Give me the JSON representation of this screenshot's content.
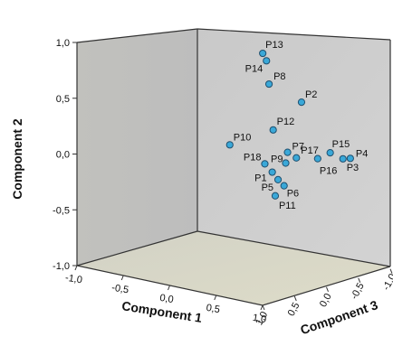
{
  "chart_data": {
    "type": "scatter",
    "projection": "3d",
    "xlabel": "Component 1",
    "ylabel": "Component 2",
    "zlabel": "Component 3",
    "xlim": [
      -1.0,
      1.0
    ],
    "ylim": [
      -1.0,
      1.0
    ],
    "zlim": [
      -1.0,
      1.0
    ],
    "xticks": [
      "-1,0",
      "-0,5",
      "0,0",
      "0,5",
      "1,0"
    ],
    "yticks": [
      "-1,0",
      "-0,5",
      "0,0",
      "0,5",
      "1,0"
    ],
    "zticks": [
      "1,0",
      "0,5",
      "0,0",
      "-0,5",
      "-1,0"
    ],
    "grid": false,
    "point_color": "#3aa8d8",
    "points": [
      {
        "label": "P1",
        "x": 0.52,
        "y": -0.03,
        "z": 0.1
      },
      {
        "label": "P2",
        "x": 0.9,
        "y": 0.68,
        "z": 0.2
      },
      {
        "label": "P3",
        "x": 0.86,
        "y": 0.05,
        "z": -0.55
      },
      {
        "label": "P4",
        "x": 0.92,
        "y": 0.06,
        "z": -0.58
      },
      {
        "label": "P5",
        "x": 0.55,
        "y": -0.1,
        "z": 0.05
      },
      {
        "label": "P6",
        "x": 0.55,
        "y": -0.17,
        "z": -0.05
      },
      {
        "label": "P7",
        "x": 0.62,
        "y": 0.15,
        "z": 0.0
      },
      {
        "label": "P8",
        "x": 0.55,
        "y": 0.78,
        "z": 0.2
      },
      {
        "label": "P9",
        "x": 0.6,
        "y": 0.05,
        "z": 0.0
      },
      {
        "label": "P10",
        "x": 0.03,
        "y": 0.12,
        "z": 0.05
      },
      {
        "label": "P11",
        "x": 0.52,
        "y": -0.25,
        "z": 0.05
      },
      {
        "label": "P12",
        "x": 0.53,
        "y": 0.35,
        "z": 0.1
      },
      {
        "label": "P13",
        "x": 0.45,
        "y": 1.03,
        "z": 0.15
      },
      {
        "label": "P14",
        "x": 0.49,
        "y": 0.97,
        "z": 0.15
      },
      {
        "label": "P15",
        "x": 0.82,
        "y": 0.12,
        "z": -0.4
      },
      {
        "label": "P16",
        "x": 0.75,
        "y": 0.07,
        "z": -0.3
      },
      {
        "label": "P17",
        "x": 0.65,
        "y": 0.09,
        "z": -0.1
      },
      {
        "label": "P18",
        "x": 0.44,
        "y": 0.03,
        "z": 0.1
      }
    ]
  }
}
